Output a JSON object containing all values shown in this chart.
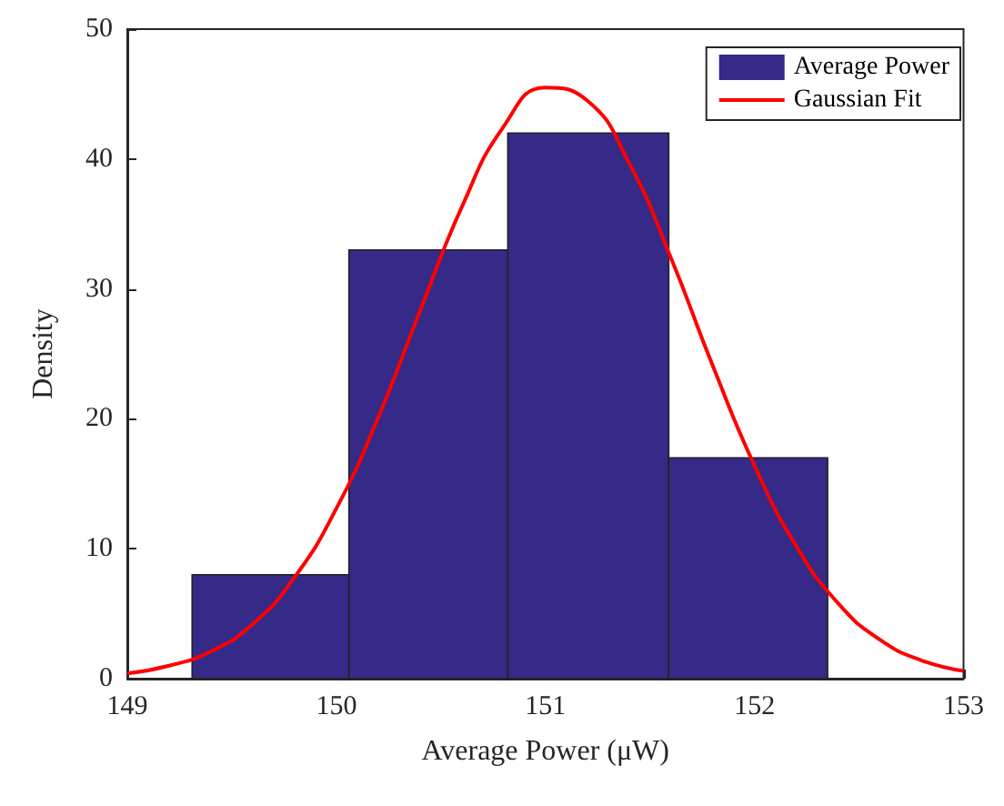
{
  "chart_data": {
    "type": "histogram",
    "xlabel": "Average Power (μW)",
    "ylabel": "Density",
    "bins": [
      149.31,
      150.06,
      150.82,
      151.59,
      152.35
    ],
    "series": [
      {
        "name": "Average Power",
        "color": "#352a87",
        "values": [
          8,
          33,
          42,
          17
        ]
      },
      {
        "name": "Gaussian Fit",
        "type": "line",
        "color": "#ff0000",
        "x": [
          149.0,
          149.2,
          149.4,
          149.6,
          149.8,
          150.0,
          150.2,
          150.4,
          150.6,
          150.8,
          151.0,
          151.2,
          151.4,
          151.6,
          151.8,
          152.0,
          152.2,
          152.4,
          152.6,
          152.8,
          153.0
        ],
        "values": [
          0.4,
          1.0,
          2.1,
          4.2,
          7.8,
          13.1,
          20.1,
          28.3,
          36.3,
          42.5,
          45.5,
          44.5,
          39.7,
          32.4,
          24.1,
          16.4,
          10.2,
          5.8,
          3.0,
          1.4,
          0.6
        ]
      }
    ],
    "xlim": [
      149,
      153
    ],
    "xticks": [
      149,
      150,
      151,
      152,
      153
    ],
    "ylim": [
      0,
      50
    ],
    "yticks": [
      0,
      10,
      20,
      30,
      40,
      50
    ],
    "legend": "top right",
    "grid": false
  }
}
